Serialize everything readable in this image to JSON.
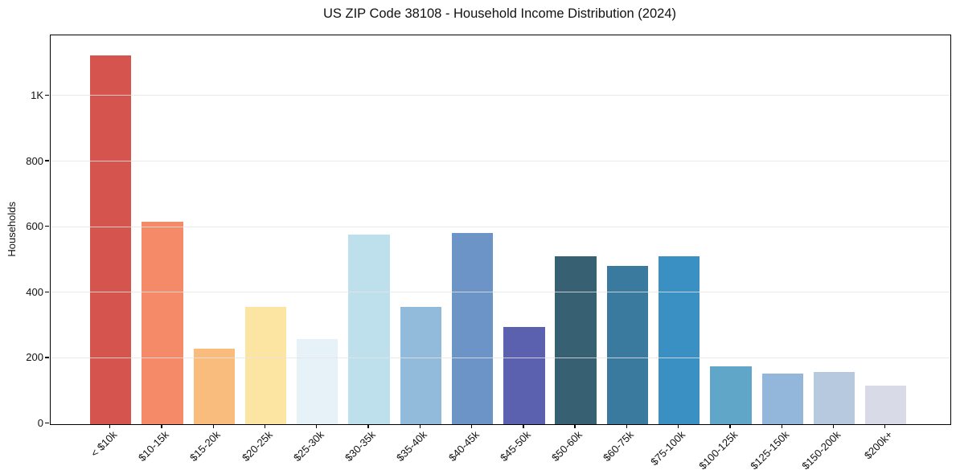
{
  "title": "US ZIP Code 38108 - Household Income Distribution (2024)",
  "chart_data": {
    "type": "bar",
    "title": "US ZIP Code 38108 - Household Income Distribution (2024)",
    "xlabel": "",
    "ylabel": "Households",
    "categories": [
      "< $10k",
      "$10-15k",
      "$15-20k",
      "$20-25k",
      "$25-30k",
      "$30-35k",
      "$35-40k",
      "$40-45k",
      "$45-50k",
      "$50-60k",
      "$60-75k",
      "$75-100k",
      "$100-125k",
      "$125-150k",
      "$150-200k",
      "$200k+"
    ],
    "values": [
      1124,
      617,
      228,
      357,
      259,
      578,
      357,
      583,
      295,
      511,
      482,
      510,
      175,
      152,
      159,
      117
    ],
    "bar_colors": [
      "#d6544e",
      "#f48a68",
      "#fabc7c",
      "#fce4a2",
      "#e7f1f8",
      "#bee0ed",
      "#91badb",
      "#6d94c7",
      "#5b60af",
      "#386073",
      "#3a7a9e",
      "#3a8fc3",
      "#5fa6c9",
      "#92b7da",
      "#b7c9de",
      "#d8dae8"
    ],
    "ylim": [
      0,
      1185
    ],
    "yticks": [
      {
        "value": 0,
        "label": "0"
      },
      {
        "value": 200,
        "label": "200"
      },
      {
        "value": 400,
        "label": "400"
      },
      {
        "value": 600,
        "label": "600"
      },
      {
        "value": 800,
        "label": "800"
      },
      {
        "value": 1000,
        "label": "1K"
      }
    ],
    "grid": "horizontal",
    "legend": "none",
    "bar_edge": "none"
  }
}
